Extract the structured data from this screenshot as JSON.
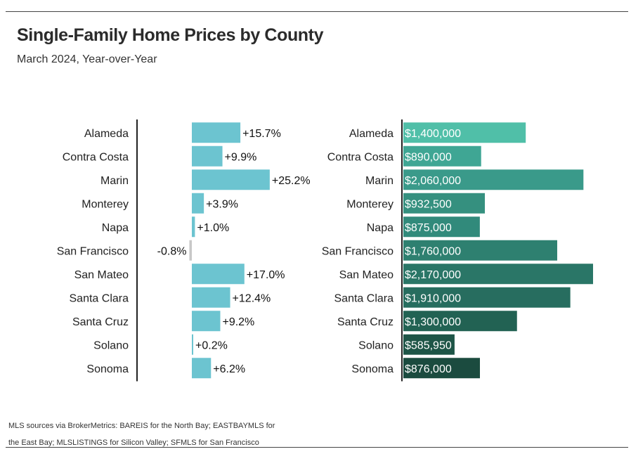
{
  "title": "Single-Family Home Prices by County",
  "subtitle": "March 2024, Year-over-Year",
  "footnote": "MLS sources via BrokerMetrics: BAREIS for the North Bay; EASTBAYMLS for the East Bay; MLSLISTINGS for Silicon Valley; SFMLS for San Francisco",
  "chart_data": [
    {
      "type": "bar",
      "orientation": "horizontal",
      "title": "",
      "xlabel": "",
      "ylabel": "",
      "categories": [
        "Alameda",
        "Contra Costa",
        "Marin",
        "Monterey",
        "Napa",
        "San Francisco",
        "San Mateo",
        "Santa Clara",
        "Santa Cruz",
        "Solano",
        "Sonoma"
      ],
      "values": [
        15.7,
        9.9,
        25.2,
        3.9,
        1.0,
        -0.8,
        17.0,
        12.4,
        9.2,
        0.2,
        6.2
      ],
      "labels": [
        "+15.7%",
        "+9.9%",
        "+25.2%",
        "+3.9%",
        "+1.0%",
        "-0.8%",
        "+17.0%",
        "+12.4%",
        "+9.2%",
        "+0.2%",
        "+6.2%"
      ],
      "unit": "%",
      "colors": {
        "positive": "#6cc4d0",
        "negative": "#c8c8c8"
      }
    },
    {
      "type": "bar",
      "orientation": "horizontal",
      "title": "",
      "xlabel": "",
      "ylabel": "",
      "categories": [
        "Alameda",
        "Contra Costa",
        "Marin",
        "Monterey",
        "Napa",
        "San Francisco",
        "San Mateo",
        "Santa Clara",
        "Santa Cruz",
        "Solano",
        "Sonoma"
      ],
      "values": [
        1400000,
        890000,
        2060000,
        932500,
        875000,
        1760000,
        2170000,
        1910000,
        1300000,
        585950,
        876000
      ],
      "labels": [
        "$1,400,000",
        "$890,000",
        "$2,060,000",
        "$932,500",
        "$875,000",
        "$1,760,000",
        "$2,170,000",
        "$1,910,000",
        "$1,300,000",
        "$585,950",
        "$876,000"
      ],
      "unit": "$",
      "colors": [
        "#50bfa8",
        "#3fa694",
        "#3a9a8a",
        "#35907f",
        "#318a7b",
        "#2e8070",
        "#2a7667",
        "#276d5f",
        "#226253",
        "#1e5547",
        "#1b4b3f"
      ]
    }
  ]
}
